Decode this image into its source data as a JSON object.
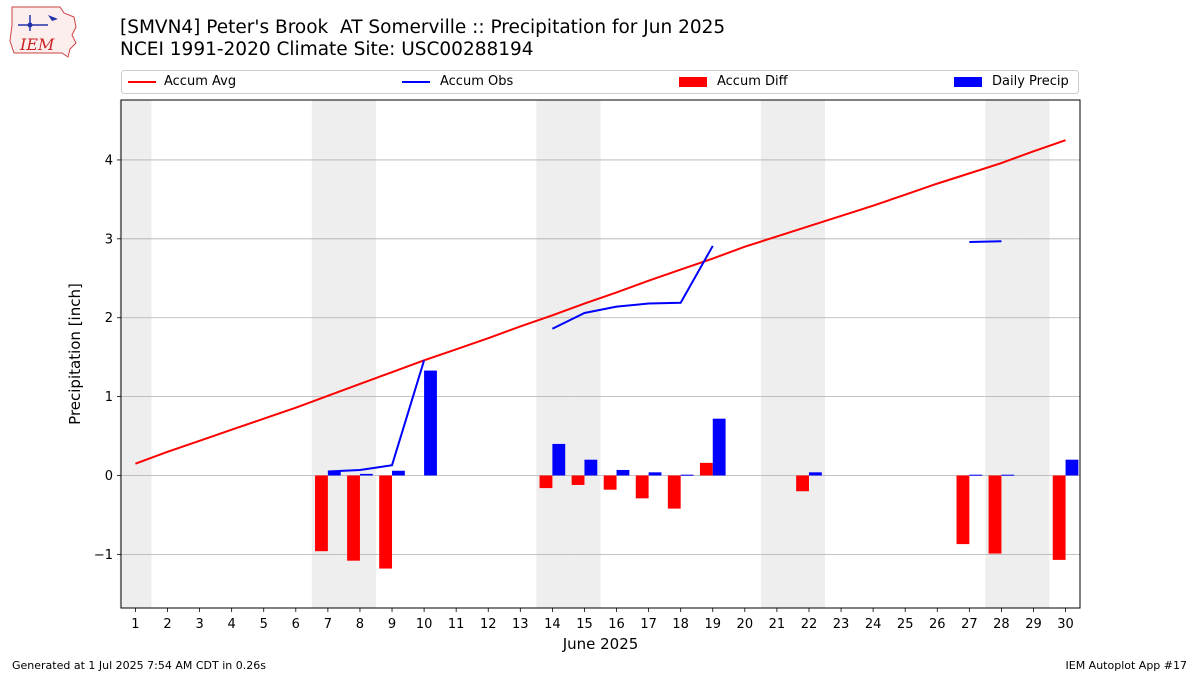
{
  "header": {
    "title_line1": "[SMVN4] Peter's Brook  AT Somerville :: Precipitation for Jun 2025",
    "title_line2": "NCEI 1991-2020 Climate Site: USC00288194",
    "logo_text": "IEM"
  },
  "footer": {
    "left": "Generated at 1 Jul 2025 7:54 AM CDT in 0.26s",
    "right": "IEM Autoplot App #17"
  },
  "colors": {
    "accum_avg": "#ff0000",
    "accum_obs": "#0000ff",
    "accum_diff": "#ff0000",
    "daily_precip": "#0000ff",
    "weekend_shade": "#eeeeee",
    "grid": "#b0b0b0"
  },
  "chart_data": {
    "type": "bar",
    "xlabel": "June 2025",
    "ylabel": "Precipitation [inch]",
    "ylim": [
      -1.68,
      4.76
    ],
    "yticks": [
      -1,
      0,
      1,
      2,
      3,
      4
    ],
    "ytick_labels": [
      "−1",
      "0",
      "1",
      "2",
      "3",
      "4"
    ],
    "xticks": [
      1,
      2,
      3,
      4,
      5,
      6,
      7,
      8,
      9,
      10,
      11,
      12,
      13,
      14,
      15,
      16,
      17,
      18,
      19,
      20,
      21,
      22,
      23,
      24,
      25,
      26,
      27,
      28,
      29,
      30
    ],
    "grid": "horizontal",
    "legend_placement": "top",
    "shaded_days": [
      1,
      7,
      8,
      14,
      15,
      21,
      22,
      28,
      29
    ],
    "series": [
      {
        "name": "Accum Avg",
        "type": "line",
        "x": [
          1,
          2,
          3,
          4,
          5,
          6,
          7,
          8,
          9,
          10,
          11,
          12,
          13,
          14,
          15,
          16,
          17,
          18,
          19,
          20,
          21,
          22,
          23,
          24,
          25,
          26,
          27,
          28,
          29,
          30
        ],
        "values": [
          0.15,
          0.3,
          0.44,
          0.58,
          0.72,
          0.86,
          1.01,
          1.16,
          1.31,
          1.46,
          1.6,
          1.74,
          1.89,
          2.03,
          2.18,
          2.32,
          2.47,
          2.61,
          2.75,
          2.9,
          3.03,
          3.16,
          3.29,
          3.42,
          3.56,
          3.7,
          3.83,
          3.96,
          4.11,
          4.25
        ]
      },
      {
        "name": "Accum Obs",
        "type": "line",
        "segments": [
          {
            "x": [
              7,
              8,
              9,
              10
            ],
            "values": [
              0.05,
              0.07,
              0.13,
              1.46
            ]
          },
          {
            "x": [
              14,
              15,
              16,
              17,
              18,
              19
            ],
            "values": [
              1.86,
              2.06,
              2.14,
              2.18,
              2.19,
              2.91
            ]
          },
          {
            "x": [
              27,
              28
            ],
            "values": [
              2.96,
              2.97
            ]
          }
        ]
      },
      {
        "name": "Accum Diff",
        "type": "bar",
        "x": [
          7,
          8,
          9,
          14,
          15,
          16,
          17,
          18,
          19,
          22,
          27,
          28,
          30
        ],
        "values": [
          -0.96,
          -1.08,
          -1.18,
          -0.16,
          -0.12,
          -0.18,
          -0.29,
          -0.42,
          0.16,
          -0.2,
          -0.87,
          -0.99,
          -1.07
        ]
      },
      {
        "name": "Daily Precip",
        "type": "bar",
        "x": [
          7,
          8,
          9,
          10,
          14,
          15,
          16,
          17,
          18,
          19,
          22,
          27,
          28,
          30
        ],
        "values": [
          0.05,
          0.02,
          0.06,
          1.33,
          0.4,
          0.2,
          0.07,
          0.04,
          0.01,
          0.72,
          0.04,
          0.01,
          0.01,
          0.2
        ]
      }
    ]
  }
}
